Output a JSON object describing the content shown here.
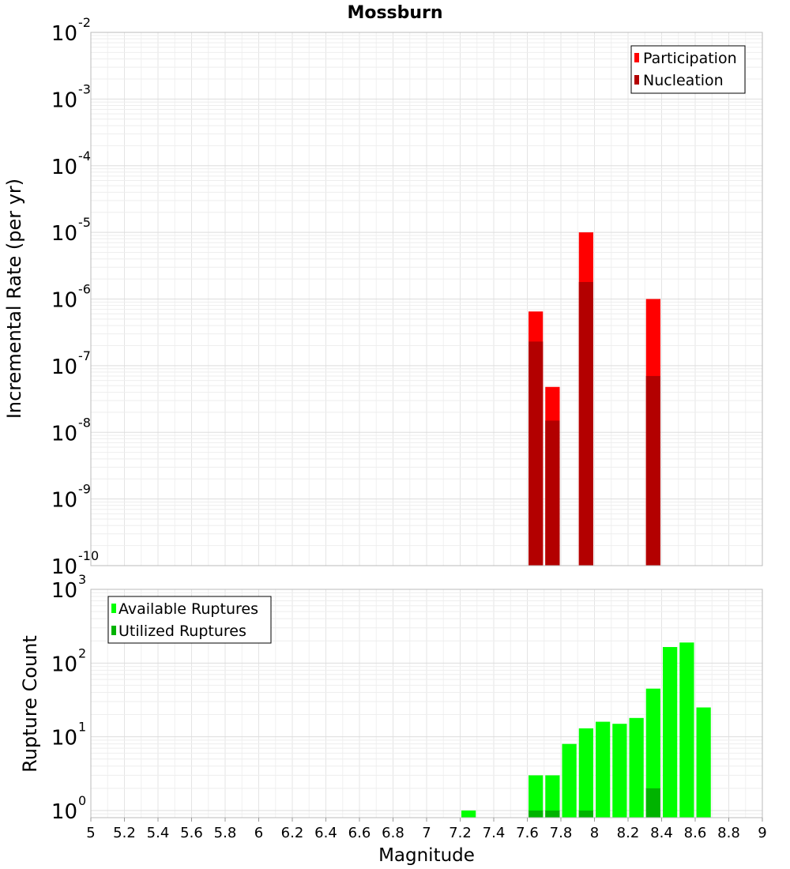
{
  "chart_data": [
    {
      "type": "bar",
      "title": "Mossburn",
      "ylabel": "Incremental Rate (per yr)",
      "xlabel": "",
      "yscale": "log",
      "ylim": [
        1e-10,
        0.01
      ],
      "xlim": [
        5,
        9
      ],
      "grid": true,
      "legend_position": "top-right",
      "y_ticks": [
        {
          "base": "10",
          "exp": "-10"
        },
        {
          "base": "10",
          "exp": "-9"
        },
        {
          "base": "10",
          "exp": "-8"
        },
        {
          "base": "10",
          "exp": "-7"
        },
        {
          "base": "10",
          "exp": "-6"
        },
        {
          "base": "10",
          "exp": "-5"
        },
        {
          "base": "10",
          "exp": "-4"
        },
        {
          "base": "10",
          "exp": "-3"
        },
        {
          "base": "10",
          "exp": "-2"
        }
      ],
      "series": [
        {
          "name": "Participation",
          "color": "#ff0000",
          "points": [
            {
              "x": 7.65,
              "y": 6.5e-07
            },
            {
              "x": 7.75,
              "y": 4.8e-08
            },
            {
              "x": 7.95,
              "y": 1e-05
            },
            {
              "x": 8.35,
              "y": 1e-06
            }
          ]
        },
        {
          "name": "Nucleation",
          "color": "#b30000",
          "points": [
            {
              "x": 7.65,
              "y": 2.3e-07
            },
            {
              "x": 7.75,
              "y": 1.5e-08
            },
            {
              "x": 7.95,
              "y": 1.8e-06
            },
            {
              "x": 8.35,
              "y": 7e-08
            }
          ]
        }
      ]
    },
    {
      "type": "bar",
      "title": "",
      "ylabel": "Rupture Count",
      "xlabel": "Magnitude",
      "yscale": "log",
      "ylim": [
        0.8,
        1000
      ],
      "xlim": [
        5,
        9
      ],
      "grid": true,
      "legend_position": "top-left",
      "x_ticks": [
        "5",
        "5.2",
        "5.4",
        "5.6",
        "5.8",
        "6",
        "6.2",
        "6.4",
        "6.6",
        "6.8",
        "7",
        "7.2",
        "7.4",
        "7.6",
        "7.8",
        "8",
        "8.2",
        "8.4",
        "8.6",
        "8.8",
        "9"
      ],
      "y_ticks": [
        {
          "base": "10",
          "exp": "0"
        },
        {
          "base": "10",
          "exp": "1"
        },
        {
          "base": "10",
          "exp": "2"
        },
        {
          "base": "10",
          "exp": "3"
        }
      ],
      "series": [
        {
          "name": "Available Ruptures",
          "color": "#00ff00",
          "points": [
            {
              "x": 7.25,
              "y": 1
            },
            {
              "x": 7.65,
              "y": 3
            },
            {
              "x": 7.75,
              "y": 3
            },
            {
              "x": 7.85,
              "y": 8
            },
            {
              "x": 7.95,
              "y": 13
            },
            {
              "x": 8.05,
              "y": 16
            },
            {
              "x": 8.15,
              "y": 15
            },
            {
              "x": 8.25,
              "y": 18
            },
            {
              "x": 8.35,
              "y": 45
            },
            {
              "x": 8.45,
              "y": 165
            },
            {
              "x": 8.55,
              "y": 190
            },
            {
              "x": 8.65,
              "y": 25
            }
          ]
        },
        {
          "name": "Utilized Ruptures",
          "color": "#00b300",
          "points": [
            {
              "x": 7.65,
              "y": 1
            },
            {
              "x": 7.75,
              "y": 1
            },
            {
              "x": 7.95,
              "y": 1
            },
            {
              "x": 8.35,
              "y": 2
            }
          ]
        }
      ]
    }
  ]
}
